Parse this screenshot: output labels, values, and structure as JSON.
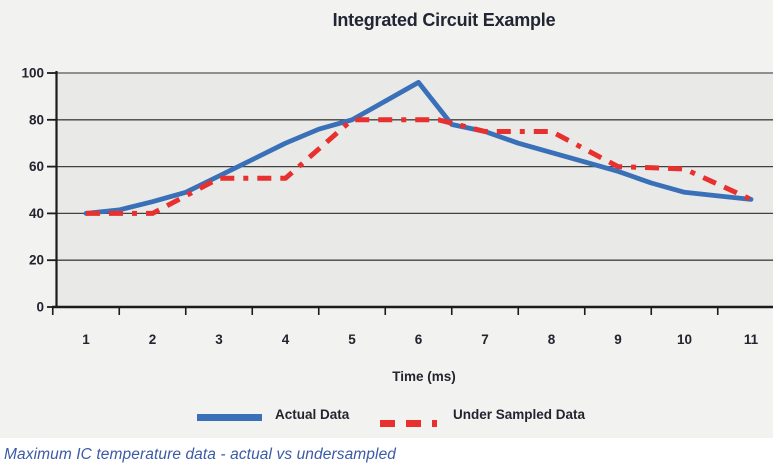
{
  "title": "Integrated Circuit Example",
  "caption": "Maximum IC temperature data - actual vs undersampled",
  "colors": {
    "actual_line": "#3a70b8",
    "undersampled_line": "#e8302e",
    "panel_bg": "#f2f2f1",
    "plot_bg": "#e9e9e8",
    "grid": "#424242",
    "top_grid": "#8f8f8f",
    "axis": "#1b1b1b",
    "label_text": "#23242e",
    "caption_text": "#3b5aa5"
  },
  "legend": {
    "items": [
      {
        "label": "Actual Data",
        "swatch": "solid-blue-line"
      },
      {
        "label": "Under Sampled Data",
        "swatch": "red-dash-dash-dot"
      }
    ]
  },
  "chart_data": {
    "type": "line",
    "title": "Integrated Circuit Example",
    "xlabel": "Time (ms)",
    "ylabel": "",
    "x_tick_labels": [
      1,
      2,
      3,
      4,
      5,
      6,
      7,
      8,
      9,
      10,
      11
    ],
    "y_tick_labels": [
      0,
      20,
      40,
      60,
      80,
      100
    ],
    "ylim": [
      0,
      100
    ],
    "xlim": [
      0.55,
      11.35
    ],
    "grid": "horizontal",
    "legend_position": "bottom",
    "series": [
      {
        "name": "Actual Data",
        "style": "solid",
        "color": "#3a70b8",
        "values_at_integer_ms": [
          40,
          45,
          56,
          70,
          80,
          96,
          75,
          66,
          58,
          49,
          46
        ],
        "points": [
          [
            1,
            40
          ],
          [
            1.5,
            41.5
          ],
          [
            2,
            45
          ],
          [
            2.5,
            49
          ],
          [
            3,
            56
          ],
          [
            3.5,
            63
          ],
          [
            4,
            70
          ],
          [
            4.5,
            76
          ],
          [
            5,
            80
          ],
          [
            5.5,
            88
          ],
          [
            6,
            96
          ],
          [
            6.5,
            78
          ],
          [
            7,
            75
          ],
          [
            7.5,
            70
          ],
          [
            8,
            66
          ],
          [
            8.5,
            62
          ],
          [
            9,
            58
          ],
          [
            9.5,
            53
          ],
          [
            10,
            49
          ],
          [
            10.5,
            47.5
          ],
          [
            11,
            46
          ]
        ]
      },
      {
        "name": "Under Sampled Data",
        "style": "dash-dash-dot",
        "color": "#e8302e",
        "values_at_integer_ms": [
          40,
          40,
          55,
          55,
          80,
          80,
          75,
          75,
          60,
          59,
          46
        ],
        "points": [
          [
            1,
            40
          ],
          [
            2,
            40
          ],
          [
            3,
            55
          ],
          [
            4,
            55
          ],
          [
            5,
            80
          ],
          [
            6.3,
            80
          ],
          [
            7,
            75
          ],
          [
            8,
            75
          ],
          [
            9,
            60
          ],
          [
            10,
            59
          ],
          [
            11,
            46
          ]
        ]
      }
    ]
  }
}
